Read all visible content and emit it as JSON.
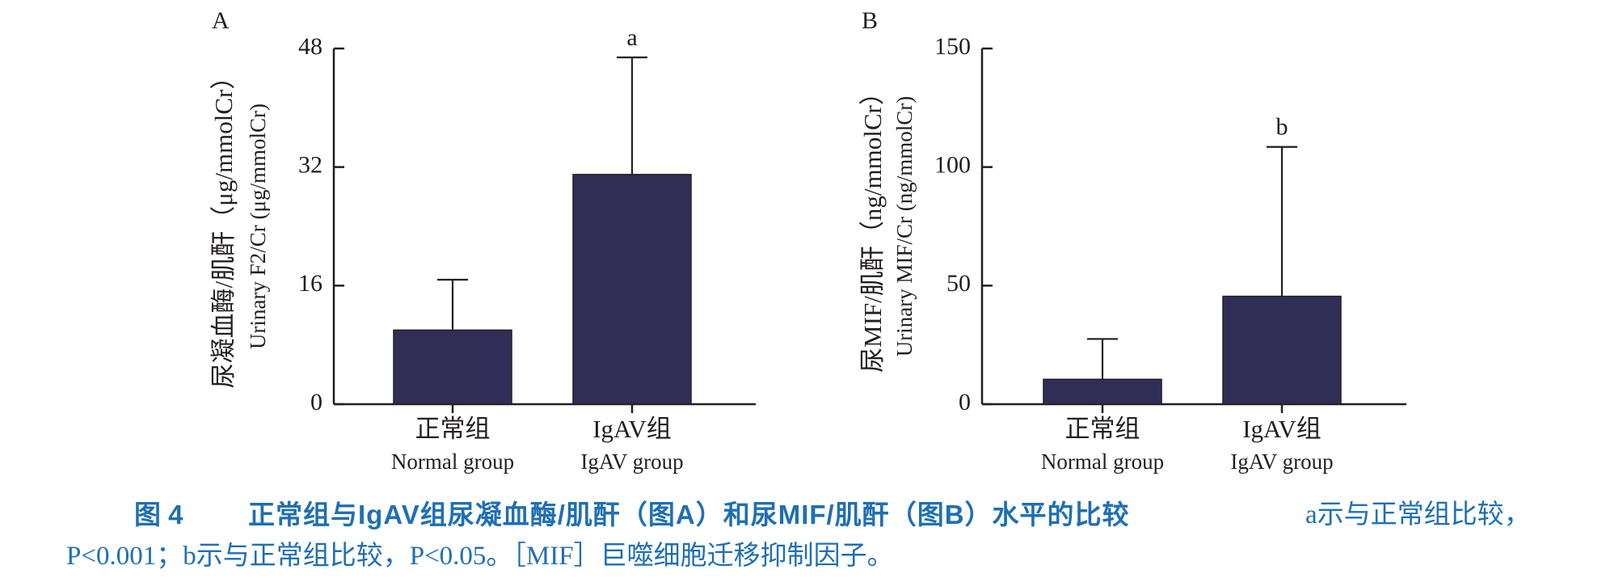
{
  "chart_data": [
    {
      "type": "bar",
      "panel_label": "A",
      "categories": [
        {
          "cn": "正常组",
          "en": "Normal group"
        },
        {
          "cn": "IgAV组",
          "en": "IgAV group"
        }
      ],
      "values": [
        10,
        31
      ],
      "error_upper": [
        16.8,
        46.8
      ],
      "annotations": [
        "",
        "a"
      ],
      "ylabel_cn": "尿凝血酶/肌酐（μg/mmolCr）",
      "ylabel_en": "Urinary F2/Cr (μg/mmolCr)",
      "ylim": [
        0,
        48
      ],
      "yticks": [
        0,
        16,
        32,
        48
      ],
      "bar_color": "#302e56",
      "grid": false
    },
    {
      "type": "bar",
      "panel_label": "B",
      "categories": [
        {
          "cn": "正常组",
          "en": "Normal group"
        },
        {
          "cn": "IgAV组",
          "en": "IgAV group"
        }
      ],
      "values": [
        10.5,
        45.5
      ],
      "error_upper": [
        27.5,
        108.5
      ],
      "annotations": [
        "",
        "b"
      ],
      "ylabel_cn": "尿MIF/肌酐（ng/mmolCr）",
      "ylabel_en": "Urinary MIF/Cr (ng/mmolCr)",
      "ylim": [
        0,
        150
      ],
      "yticks": [
        0,
        50,
        100,
        150
      ],
      "bar_color": "#302e56",
      "grid": false
    }
  ],
  "caption": {
    "figure_label": "图 4",
    "title": "正常组与IgAV组尿凝血酶/肌酐（图A）和尿MIF/肌酐（图B）水平的比较",
    "note_line1": "a示与正常组比较，",
    "note_line2": "P<0.001；b示与正常组比较，P<0.05。［MIF］巨噬细胞迁移抑制因子。"
  }
}
